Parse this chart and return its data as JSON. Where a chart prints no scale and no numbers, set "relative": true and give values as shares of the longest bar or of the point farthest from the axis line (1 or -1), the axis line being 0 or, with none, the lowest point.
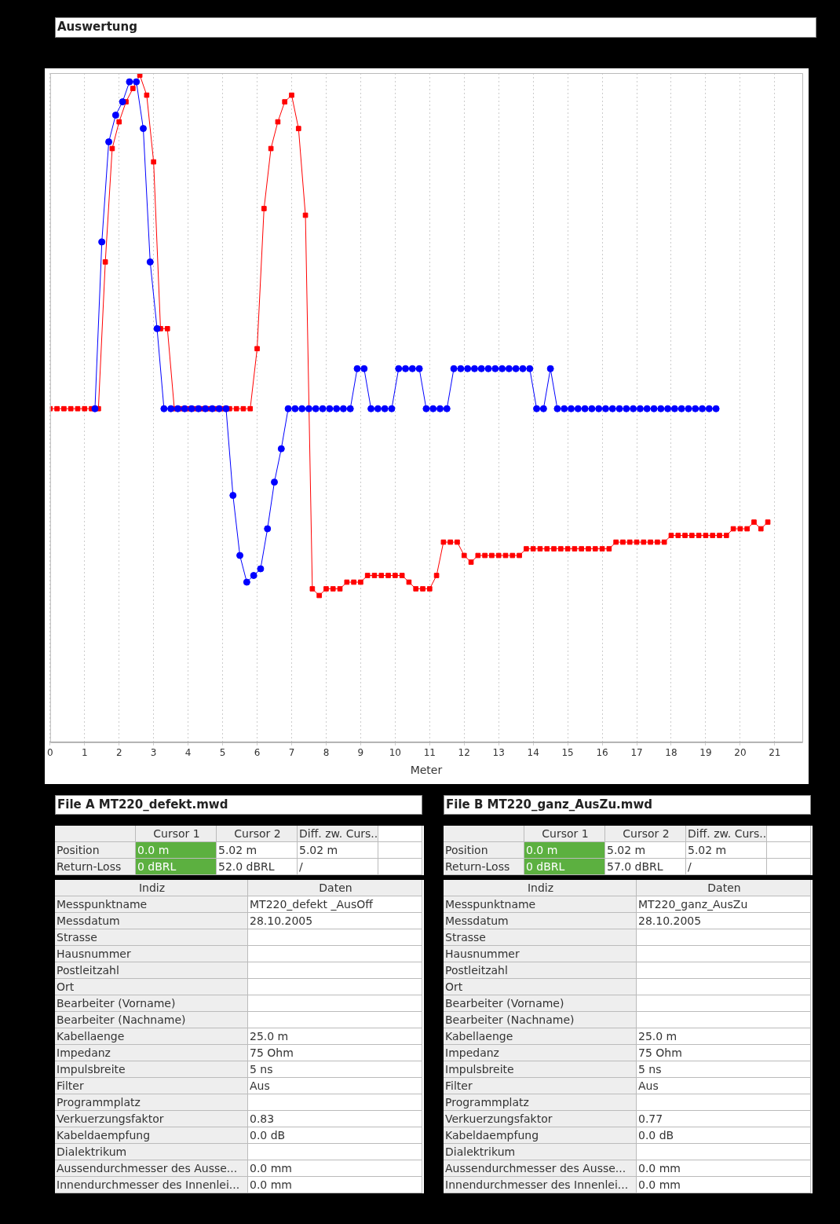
{
  "chart_data": [
    {
      "type": "line",
      "title": "Auswertung",
      "xlabel": "Meter",
      "relative": true,
      "xlim": [
        0,
        21.8
      ],
      "xticks": [
        0,
        1,
        2,
        3,
        4,
        5,
        6,
        7,
        8,
        9,
        10,
        11,
        12,
        13,
        14,
        15,
        16,
        17,
        18,
        19,
        20,
        21
      ],
      "grid": "x",
      "series": [
        {
          "color": "#0000ff",
          "marker": "circle",
          "x": [
            1.3,
            1.5,
            1.7,
            1.9,
            2.1,
            2.3,
            2.5,
            2.7,
            2.9,
            3.1,
            3.3,
            3.5,
            3.7,
            3.9,
            4.1,
            4.3,
            4.5,
            4.7,
            4.9,
            5.1,
            5.3,
            5.5,
            5.7,
            5.9,
            6.1,
            6.3,
            6.5,
            6.7,
            6.9,
            7.1,
            7.3,
            7.5,
            7.7,
            7.9,
            8.1,
            8.3,
            8.5,
            8.7,
            8.9,
            9.1,
            9.3,
            9.5,
            9.7,
            9.9,
            10.1,
            10.3,
            10.5,
            10.7,
            10.9,
            11.1,
            11.3,
            11.5,
            11.7,
            11.9,
            12.1,
            12.3,
            12.5,
            12.7,
            12.9,
            13.1,
            13.3,
            13.5,
            13.7,
            13.9,
            14.1,
            14.3,
            14.5,
            14.7,
            14.9,
            15.1,
            15.3,
            15.5,
            15.7,
            15.9,
            16.1,
            16.3,
            16.5,
            16.7,
            16.9,
            17.1,
            17.3,
            17.5,
            17.7,
            17.9,
            18.1,
            18.3,
            18.5,
            18.7,
            18.9,
            19.1,
            19.3
          ],
          "values": [
            0.5,
            0.75,
            0.9,
            0.94,
            0.96,
            0.99,
            0.99,
            0.92,
            0.72,
            0.62,
            0.5,
            0.5,
            0.5,
            0.5,
            0.5,
            0.5,
            0.5,
            0.5,
            0.5,
            0.5,
            0.37,
            0.28,
            0.24,
            0.25,
            0.26,
            0.32,
            0.39,
            0.44,
            0.5,
            0.5,
            0.5,
            0.5,
            0.5,
            0.5,
            0.5,
            0.5,
            0.5,
            0.5,
            0.56,
            0.56,
            0.5,
            0.5,
            0.5,
            0.5,
            0.56,
            0.56,
            0.56,
            0.56,
            0.5,
            0.5,
            0.5,
            0.5,
            0.56,
            0.56,
            0.56,
            0.56,
            0.56,
            0.56,
            0.56,
            0.56,
            0.56,
            0.56,
            0.56,
            0.56,
            0.5,
            0.5,
            0.56,
            0.5,
            0.5,
            0.5,
            0.5,
            0.5,
            0.5,
            0.5,
            0.5,
            0.5,
            0.5,
            0.5,
            0.5,
            0.5,
            0.5,
            0.5,
            0.5,
            0.5,
            0.5,
            0.5,
            0.5,
            0.5,
            0.5,
            0.5,
            0.5
          ]
        },
        {
          "color": "#ff0000",
          "marker": "square",
          "x": [
            0,
            0.2,
            0.4,
            0.6,
            0.8,
            1.0,
            1.2,
            1.4,
            1.6,
            1.8,
            2.0,
            2.2,
            2.4,
            2.6,
            2.8,
            3.0,
            3.2,
            3.4,
            3.6,
            3.8,
            4.0,
            4.2,
            4.4,
            4.6,
            4.8,
            5.0,
            5.2,
            5.4,
            5.6,
            5.8,
            6.0,
            6.2,
            6.4,
            6.6,
            6.8,
            7.0,
            7.2,
            7.4,
            7.6,
            7.8,
            8.0,
            8.2,
            8.4,
            8.6,
            8.8,
            9.0,
            9.2,
            9.4,
            9.6,
            9.8,
            10.0,
            10.2,
            10.4,
            10.6,
            10.8,
            11.0,
            11.2,
            11.4,
            11.6,
            11.8,
            12.0,
            12.2,
            12.4,
            12.6,
            12.8,
            13.0,
            13.2,
            13.4,
            13.6,
            13.8,
            14.0,
            14.2,
            14.4,
            14.6,
            14.8,
            15.0,
            15.2,
            15.4,
            15.6,
            15.8,
            16.0,
            16.2,
            16.4,
            16.6,
            16.8,
            17.0,
            17.2,
            17.4,
            17.6,
            17.8,
            18.0,
            18.2,
            18.4,
            18.6,
            18.8,
            19.0,
            19.2,
            19.4,
            19.6,
            19.8,
            20.0,
            20.2,
            20.4,
            20.6,
            20.8
          ],
          "values": [
            0.5,
            0.5,
            0.5,
            0.5,
            0.5,
            0.5,
            0.5,
            0.5,
            0.72,
            0.89,
            0.93,
            0.96,
            0.98,
            1,
            0.97,
            0.87,
            0.62,
            0.62,
            0.5,
            0.5,
            0.5,
            0.5,
            0.5,
            0.5,
            0.5,
            0.5,
            0.5,
            0.5,
            0.5,
            0.5,
            0.59,
            0.8,
            0.89,
            0.93,
            0.96,
            0.97,
            0.92,
            0.79,
            0.23,
            0.22,
            0.23,
            0.23,
            0.23,
            0.24,
            0.24,
            0.24,
            0.25,
            0.25,
            0.25,
            0.25,
            0.25,
            0.25,
            0.24,
            0.23,
            0.23,
            0.23,
            0.25,
            0.3,
            0.3,
            0.3,
            0.28,
            0.27,
            0.28,
            0.28,
            0.28,
            0.28,
            0.28,
            0.28,
            0.28,
            0.29,
            0.29,
            0.29,
            0.29,
            0.29,
            0.29,
            0.29,
            0.29,
            0.29,
            0.29,
            0.29,
            0.29,
            0.29,
            0.3,
            0.3,
            0.3,
            0.3,
            0.3,
            0.3,
            0.3,
            0.3,
            0.31,
            0.31,
            0.31,
            0.31,
            0.31,
            0.31,
            0.31,
            0.31,
            0.31,
            0.32,
            0.32,
            0.32,
            0.33,
            0.32,
            0.33
          ]
        }
      ]
    },
    {
      "type": "other",
      "title": "File A MT220_defekt.mwd",
      "annotations": [
        null,
        "Cursor 1",
        "Cursor 2",
        "Diff. zw. Curs..",
        "Position",
        "0.0 m",
        "5.02 m",
        "5.02 m",
        "Return-Loss",
        "0 dBRL",
        "52.0 dBRL",
        "/",
        "Indiz",
        "Daten",
        "Messpunktname",
        "MT220_defekt _AusOff",
        "Messdatum",
        "28.10.2005",
        "Strasse",
        null,
        "Hausnummer",
        null,
        "Postleitzahl",
        null,
        "Ort",
        null,
        "Bearbeiter (Vorname)",
        null,
        "Bearbeiter (Nachname)",
        null,
        "Kabellaenge",
        "25.0 m",
        "Impedanz",
        "75 Ohm",
        "Impulsbreite",
        "5 ns",
        "Filter",
        "Aus",
        "Programmplatz",
        null,
        "Verkuerzungsfaktor",
        "0.83",
        "Kabeldaempfung",
        "0.0 dB",
        "Dialektrikum",
        null,
        "Aussendurchmesser des Ausse...",
        "0.0 mm",
        "Innendurchmesser des Innenlei...",
        "0.0 mm"
      ]
    },
    {
      "type": "other",
      "title": "File B MT220_ganz_AusZu.mwd",
      "annotations": [
        null,
        "Cursor 1",
        "Cursor 2",
        "Diff. zw. Curs..",
        "Position",
        "0.0 m",
        "5.02 m",
        "5.02 m",
        "Return-Loss",
        "0 dBRL",
        "57.0 dBRL",
        "/",
        "Indiz",
        "Daten",
        "Messpunktname",
        "MT220_ganz_AusZu",
        "Messdatum",
        "28.10.2005",
        "Strasse",
        null,
        "Hausnummer",
        null,
        "Postleitzahl",
        null,
        "Ort",
        null,
        "Bearbeiter (Vorname)",
        null,
        "Bearbeiter (Nachname)",
        null,
        "Kabellaenge",
        "25.0 m",
        "Impedanz",
        "75 Ohm",
        "Impulsbreite",
        "5 ns",
        "Filter",
        "Aus",
        "Programmplatz",
        null,
        "Verkuerzungsfaktor",
        "0.77",
        "Kabeldaempfung",
        "0.0 dB",
        "Dialektrikum",
        null,
        "Aussendurchmesser des Ausse...",
        "0.0 mm",
        "Innendurchmesser des Innenlei...",
        "0.0 mm"
      ]
    }
  ]
}
